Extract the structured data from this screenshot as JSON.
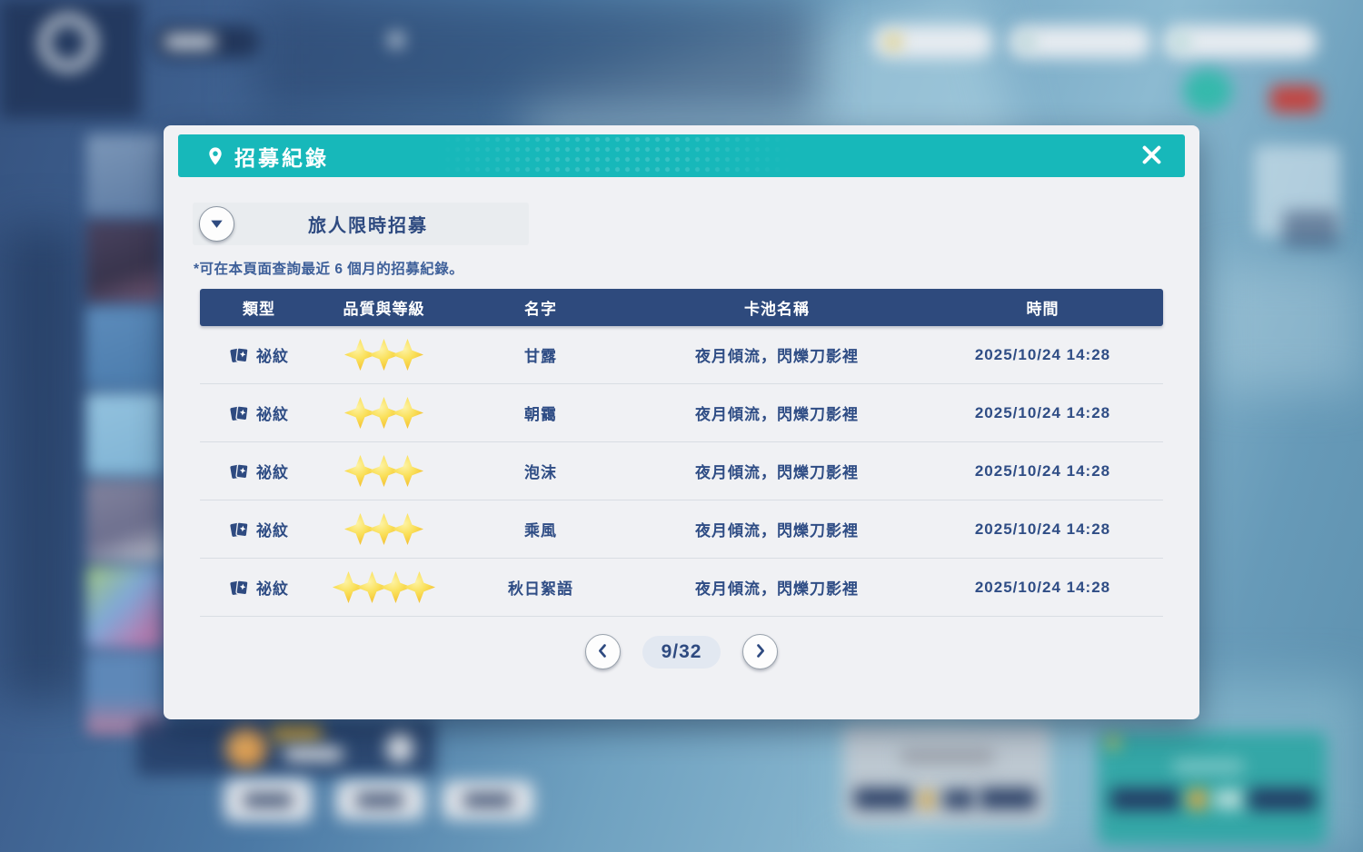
{
  "colors": {
    "header_teal": "#17b8ba",
    "navy": "#2e4a80",
    "table_header_navy": "#2e4a7d",
    "star_gold": "#f3c134",
    "modal_bg": "#f0f1f4"
  },
  "icons": {
    "header": "location-pin-icon",
    "close": "close-icon",
    "dropdown": "chevron-down-icon",
    "type": "card-star-icon",
    "star": "sparkle-star-icon",
    "prev": "chevron-left-icon",
    "next": "chevron-right-icon"
  },
  "modal": {
    "title": "招募紀錄",
    "dropdown": {
      "label": "旅人限時招募"
    },
    "note": "*可在本頁面查詢最近 6 個月的招募紀錄。",
    "table": {
      "headers": [
        "類型",
        "品質與等級",
        "名字",
        "卡池名稱",
        "時間"
      ],
      "rows": [
        {
          "type": "祕紋",
          "stars": 3,
          "name": "甘露",
          "pool": "夜月傾流，閃爍刀影裡",
          "time": "2025/10/24 14:28"
        },
        {
          "type": "祕紋",
          "stars": 3,
          "name": "朝靄",
          "pool": "夜月傾流，閃爍刀影裡",
          "time": "2025/10/24 14:28"
        },
        {
          "type": "祕紋",
          "stars": 3,
          "name": "泡沫",
          "pool": "夜月傾流，閃爍刀影裡",
          "time": "2025/10/24 14:28"
        },
        {
          "type": "祕紋",
          "stars": 3,
          "name": "乘風",
          "pool": "夜月傾流，閃爍刀影裡",
          "time": "2025/10/24 14:28"
        },
        {
          "type": "祕紋",
          "stars": 4,
          "name": "秋日絮語",
          "pool": "夜月傾流，閃爍刀影裡",
          "time": "2025/10/24 14:28"
        }
      ]
    },
    "pagination": {
      "label": "9/32"
    }
  }
}
